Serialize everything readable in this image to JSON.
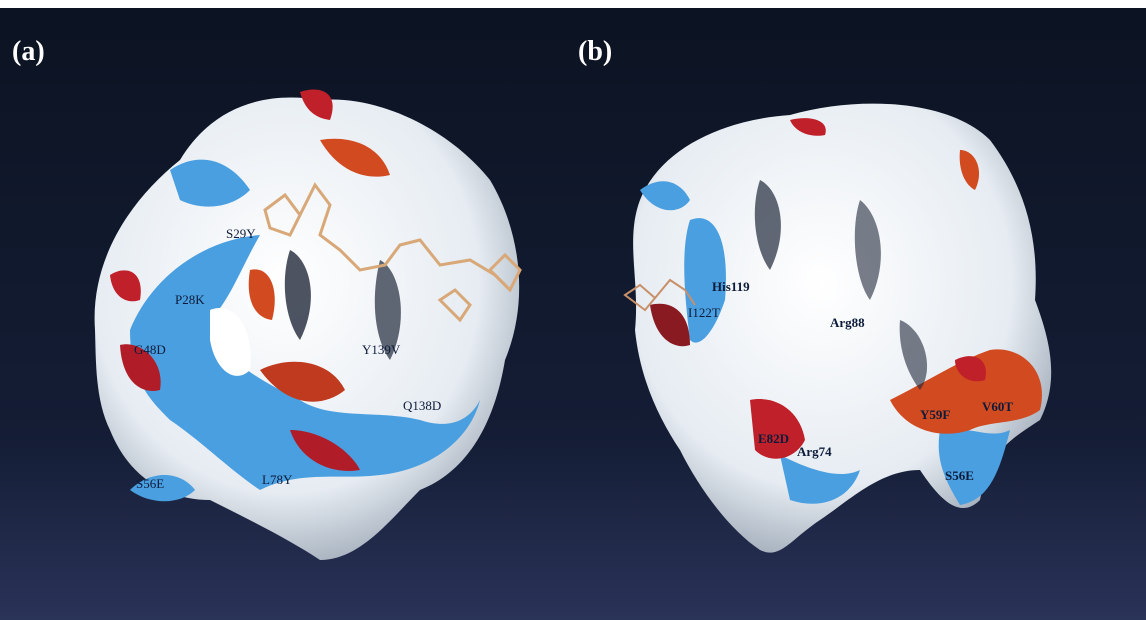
{
  "panels": [
    {
      "label": "(a)",
      "residues": [
        "S29Y",
        "P28K",
        "G48D",
        "Y139V",
        "Q138D",
        "S56E",
        "L78Y"
      ]
    },
    {
      "label": "(b)",
      "residues": [
        "His119",
        "I122T",
        "Arg88",
        "E82D",
        "Arg74",
        "Y59F",
        "V60T",
        "S56E"
      ]
    }
  ]
}
